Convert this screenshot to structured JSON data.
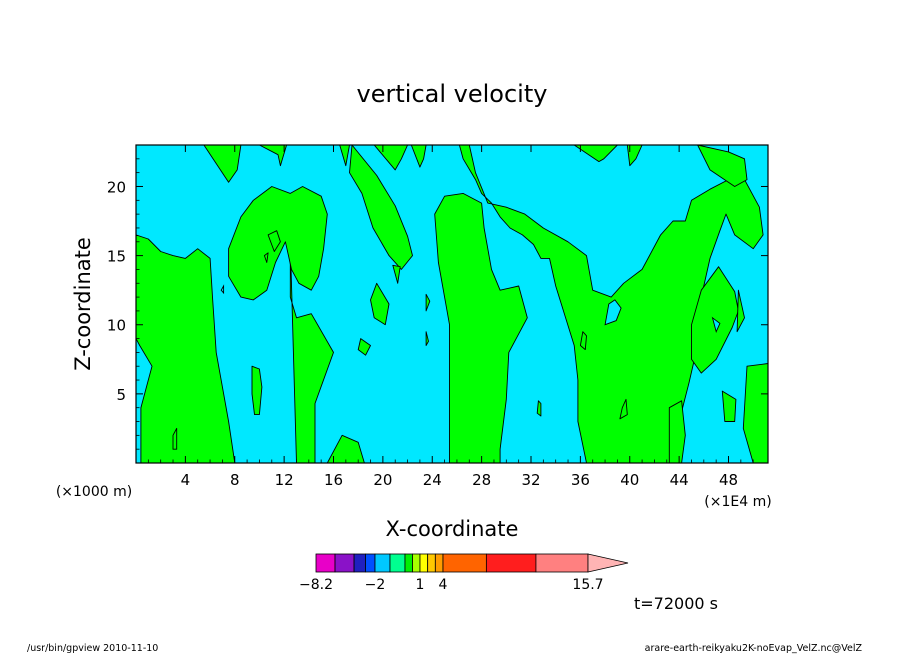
{
  "chart_data": {
    "type": "heatmap",
    "title": "vertical velocity",
    "xlabel": "X-coordinate",
    "ylabel": "Z-coordinate",
    "x_units_note": "(×1000 m)",
    "x_scale_note": "(×1E4 m)",
    "x_ticks": [
      "4",
      "8",
      "12",
      "16",
      "20",
      "24",
      "28",
      "32",
      "36",
      "40",
      "44",
      "48"
    ],
    "x_tick_values": [
      4,
      8,
      12,
      16,
      20,
      24,
      28,
      32,
      36,
      40,
      44,
      48
    ],
    "y_ticks": [
      "5",
      "10",
      "15",
      "20"
    ],
    "y_tick_values": [
      5,
      10,
      15,
      20
    ],
    "xlim": [
      0,
      51.2
    ],
    "ylim": [
      0,
      23
    ],
    "contour_levels": [
      -8.2,
      -2,
      1,
      4,
      15.7
    ],
    "colorbar_labels": [
      "−8.2",
      "−2",
      "1",
      "4",
      "15.7"
    ],
    "colorbar_values": [
      -8.2,
      -2,
      1,
      4,
      15.7
    ],
    "colorbar_colors": [
      "#e800c8",
      "#8a12c8",
      "#2020c0",
      "#0050ff",
      "#00c8ff",
      "#00ff90",
      "#00f000",
      "#a8ff00",
      "#ffff00",
      "#ffc800",
      "#ff9c00",
      "#ff6400",
      "#ff1e1e",
      "#ff8080",
      "#ffb4b4"
    ],
    "field_colors": {
      "downward": "#00e8ff",
      "upward": "#00ff00",
      "contour": "#000000"
    },
    "time_label": "t=72000 s",
    "grid": false,
    "upward_regions": [
      [
        [
          0,
          16.5
        ],
        [
          1,
          16.2
        ],
        [
          2,
          15.3
        ],
        [
          3,
          15
        ],
        [
          4,
          14.8
        ],
        [
          5,
          15.5
        ],
        [
          6,
          14.8
        ],
        [
          6.2,
          12
        ],
        [
          6.5,
          8
        ],
        [
          7.5,
          3
        ],
        [
          8,
          0
        ],
        [
          0.4,
          0
        ],
        [
          0.4,
          4
        ],
        [
          1.3,
          7
        ],
        [
          0.3,
          8.5
        ],
        [
          0,
          9
        ]
      ],
      [
        [
          12.5,
          16
        ],
        [
          13,
          0
        ],
        [
          14.5,
          0
        ],
        [
          14.5,
          4.3
        ],
        [
          16,
          8
        ],
        [
          14.2,
          10.8
        ],
        [
          13,
          10.5
        ],
        [
          12.5,
          12
        ]
      ],
      [
        [
          15.5,
          0
        ],
        [
          16.7,
          2
        ],
        [
          18,
          1.5
        ],
        [
          18.5,
          0
        ]
      ],
      [
        [
          7.5,
          15.5
        ],
        [
          8.5,
          17.8
        ],
        [
          9.5,
          19
        ],
        [
          11,
          20
        ],
        [
          12.5,
          19.5
        ],
        [
          13.5,
          20
        ],
        [
          15,
          19.3
        ],
        [
          15.5,
          18
        ],
        [
          15.2,
          15.5
        ],
        [
          14.8,
          13.5
        ],
        [
          14.2,
          12.5
        ],
        [
          13.2,
          13
        ],
        [
          12.6,
          14
        ],
        [
          12.1,
          16
        ],
        [
          11.3,
          14.5
        ],
        [
          10.6,
          12.5
        ],
        [
          9.5,
          11.8
        ],
        [
          8.5,
          12
        ],
        [
          7.5,
          13.5
        ]
      ],
      [
        [
          17.5,
          23
        ],
        [
          19.5,
          20.8
        ],
        [
          21,
          18.6
        ],
        [
          22,
          16.4
        ],
        [
          22.4,
          15
        ],
        [
          21.5,
          14
        ],
        [
          20.5,
          15
        ],
        [
          19.2,
          17
        ],
        [
          18.3,
          19.5
        ],
        [
          17.3,
          21
        ]
      ],
      [
        [
          19.5,
          13
        ],
        [
          20.5,
          11.5
        ],
        [
          20.2,
          10
        ],
        [
          19.3,
          10.5
        ],
        [
          19,
          11.8
        ]
      ],
      [
        [
          20.8,
          14.3
        ],
        [
          21.4,
          14.2
        ],
        [
          21.2,
          13
        ]
      ],
      [
        [
          18.2,
          9
        ],
        [
          19,
          8.5
        ],
        [
          18.6,
          7.8
        ],
        [
          18,
          8.2
        ]
      ],
      [
        [
          23.5,
          12.2
        ],
        [
          23.8,
          11.7
        ],
        [
          23.5,
          11
        ]
      ],
      [
        [
          23.5,
          9.5
        ],
        [
          23.7,
          8.8
        ],
        [
          23.5,
          8.5
        ]
      ],
      [
        [
          24.2,
          18
        ],
        [
          25,
          19.3
        ],
        [
          26.5,
          19.5
        ],
        [
          28,
          18.8
        ],
        [
          28.2,
          17
        ],
        [
          28.8,
          14
        ],
        [
          29.5,
          12.5
        ],
        [
          31,
          12.8
        ],
        [
          31.7,
          10.5
        ],
        [
          30.2,
          8
        ],
        [
          30,
          4.6
        ],
        [
          29.5,
          1
        ],
        [
          29.5,
          0
        ],
        [
          25.4,
          0
        ],
        [
          25.4,
          10
        ],
        [
          24.5,
          14.5
        ]
      ],
      [
        [
          27,
          23
        ],
        [
          27.5,
          21
        ],
        [
          28.5,
          18.8
        ],
        [
          30,
          18.5
        ],
        [
          31.5,
          18
        ],
        [
          33,
          17
        ],
        [
          35,
          16
        ],
        [
          36.5,
          15
        ],
        [
          37,
          12.5
        ],
        [
          38.5,
          12
        ],
        [
          39.5,
          13
        ],
        [
          41,
          14
        ],
        [
          42.5,
          16.5
        ],
        [
          43.5,
          17.5
        ],
        [
          44.5,
          17.5
        ],
        [
          45,
          19
        ],
        [
          46.5,
          19.8
        ],
        [
          48,
          20.5
        ],
        [
          49,
          21
        ],
        [
          50.5,
          18.5
        ],
        [
          50.8,
          16.5
        ],
        [
          50,
          15.5
        ],
        [
          48.5,
          16.5
        ],
        [
          47.8,
          18
        ],
        [
          47.3,
          16.8
        ],
        [
          46.5,
          14.8
        ],
        [
          45.8,
          12
        ],
        [
          45.5,
          8.5
        ],
        [
          44.8,
          5.8
        ],
        [
          44,
          3
        ],
        [
          43.8,
          0
        ],
        [
          36.5,
          0
        ],
        [
          35.8,
          3
        ],
        [
          35.8,
          6
        ],
        [
          35.5,
          8.5
        ],
        [
          34,
          12.8
        ],
        [
          33.5,
          14.8
        ],
        [
          32.8,
          14.8
        ],
        [
          32.2,
          15.8
        ],
        [
          31.3,
          16.5
        ],
        [
          30.3,
          17
        ],
        [
          29.5,
          17.8
        ],
        [
          28.8,
          18.8
        ],
        [
          28,
          19.5
        ],
        [
          27.5,
          20.5
        ],
        [
          26.5,
          22
        ],
        [
          26.2,
          23
        ]
      ],
      [
        [
          45.5,
          23
        ],
        [
          48,
          22.5
        ],
        [
          49.3,
          22
        ],
        [
          49.5,
          20.5
        ],
        [
          48.5,
          20
        ],
        [
          46.5,
          21.2
        ]
      ],
      [
        [
          47.2,
          14.2
        ],
        [
          48.5,
          12.4
        ],
        [
          48.8,
          11
        ],
        [
          48.3,
          9.8
        ],
        [
          47,
          7.5
        ],
        [
          45.8,
          6.5
        ],
        [
          45,
          7.5
        ],
        [
          45,
          10
        ],
        [
          45.8,
          12.5
        ]
      ],
      [
        [
          48.8,
          12.5
        ],
        [
          49.3,
          10.5
        ],
        [
          48.7,
          9.5
        ]
      ],
      [
        [
          47.5,
          5.2
        ],
        [
          48.6,
          4.6
        ],
        [
          48.5,
          3
        ],
        [
          47.7,
          3
        ]
      ],
      [
        [
          43.2,
          4
        ],
        [
          44.2,
          4.5
        ],
        [
          44.5,
          2
        ],
        [
          44.2,
          0
        ],
        [
          43.2,
          0
        ]
      ],
      [
        [
          49.5,
          7
        ],
        [
          51.2,
          7.2
        ],
        [
          51.2,
          0
        ],
        [
          50,
          0
        ],
        [
          49.2,
          2.5
        ]
      ],
      [
        [
          5.5,
          23
        ],
        [
          7.5,
          20.3
        ],
        [
          8.2,
          21.2
        ],
        [
          8.5,
          23
        ]
      ],
      [
        [
          10,
          23
        ],
        [
          11.5,
          22.3
        ],
        [
          11.7,
          21.5
        ],
        [
          12.2,
          23
        ]
      ],
      [
        [
          16.5,
          23
        ],
        [
          17,
          21.5
        ],
        [
          17.3,
          23
        ]
      ],
      [
        [
          19.3,
          23
        ],
        [
          21,
          21.2
        ],
        [
          21.5,
          22
        ],
        [
          22,
          23
        ]
      ],
      [
        [
          22.3,
          23
        ],
        [
          23,
          21.4
        ],
        [
          23.3,
          22
        ],
        [
          23.5,
          23
        ]
      ],
      [
        [
          35.5,
          23
        ],
        [
          37.5,
          21.8
        ],
        [
          37.9,
          22
        ],
        [
          39,
          23
        ]
      ],
      [
        [
          39.8,
          23
        ],
        [
          40,
          21.5
        ],
        [
          40.5,
          22
        ],
        [
          41,
          23
        ]
      ],
      [
        [
          39.4,
          4
        ],
        [
          39.7,
          4.6
        ],
        [
          39.8,
          3.5
        ],
        [
          39.2,
          3.2
        ]
      ],
      [
        [
          36.2,
          9.5
        ],
        [
          36.5,
          9.2
        ],
        [
          36.4,
          8.2
        ],
        [
          36,
          8.5
        ]
      ],
      [
        [
          32.6,
          4.5
        ],
        [
          32.8,
          4.3
        ],
        [
          32.8,
          3.4
        ],
        [
          32.5,
          3.6
        ]
      ],
      [
        [
          9.4,
          7
        ],
        [
          10,
          6.8
        ],
        [
          10.2,
          5.5
        ],
        [
          10,
          3.5
        ],
        [
          9.6,
          3.5
        ],
        [
          9.4,
          5
        ]
      ],
      [
        [
          10.7,
          16.5
        ],
        [
          11.4,
          16.8
        ],
        [
          11.7,
          16
        ],
        [
          11.2,
          15.3
        ]
      ],
      [
        [
          10.4,
          15
        ],
        [
          10.7,
          15.2
        ],
        [
          10.6,
          14.5
        ]
      ],
      [
        [
          3,
          2
        ],
        [
          3.3,
          2.5
        ],
        [
          3.3,
          1
        ],
        [
          3,
          1
        ]
      ]
    ],
    "downward_islands": [
      [
        [
          6.9,
          12.5
        ],
        [
          7.1,
          12.8
        ],
        [
          7.1,
          12.3
        ]
      ],
      [
        [
          38,
          10
        ],
        [
          38.3,
          11.5
        ],
        [
          38.8,
          11.8
        ],
        [
          39.3,
          11.2
        ],
        [
          38.9,
          10.3
        ]
      ],
      [
        [
          46.7,
          10.5
        ],
        [
          47.3,
          10.1
        ],
        [
          47,
          9.5
        ]
      ]
    ]
  },
  "footer": {
    "left": "/usr/bin/gpview   2010-11-10",
    "right": "arare-earth-reikyaku2K-noEvap_VelZ.nc@VelZ"
  }
}
